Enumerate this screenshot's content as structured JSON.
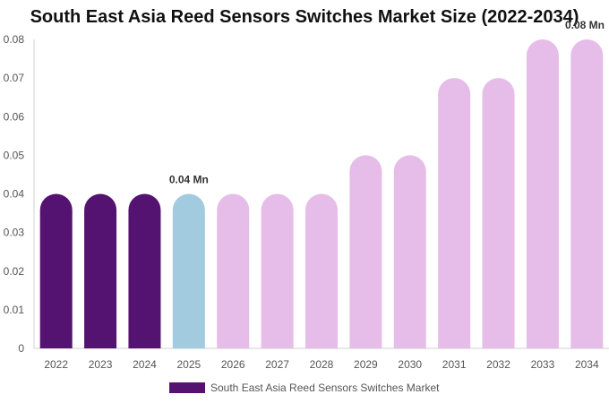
{
  "chart_data": {
    "type": "bar",
    "title": "South East Asia Reed Sensors Switches Market Size (2022-2034)",
    "xlabel": "",
    "ylabel": "",
    "categories": [
      "2022",
      "2023",
      "2024",
      "2025",
      "2026",
      "2027",
      "2028",
      "2029",
      "2030",
      "2031",
      "2032",
      "2033",
      "2034"
    ],
    "series": [
      {
        "name": "South East Asia Reed Sensors Switches Market",
        "values": [
          0.04,
          0.04,
          0.04,
          0.04,
          0.04,
          0.04,
          0.04,
          0.05,
          0.05,
          0.07,
          0.07,
          0.08,
          0.08
        ]
      }
    ],
    "ylim": [
      0,
      0.08
    ],
    "yticks": [
      "0",
      "0.01",
      "0.02",
      "0.03",
      "0.04",
      "0.05",
      "0.06",
      "0.07",
      "0.08"
    ],
    "bar_colors": [
      "#541271",
      "#541271",
      "#541271",
      "#a3cbe0",
      "#e6bce8",
      "#e6bce8",
      "#e6bce8",
      "#e6bce8",
      "#e6bce8",
      "#e6bce8",
      "#e6bce8",
      "#e6bce8",
      "#e6bce8"
    ],
    "data_labels": [
      {
        "category": "2025",
        "text": "0.04 Mn"
      },
      {
        "category": "2034",
        "text": "0.08 Mn"
      }
    ],
    "legend": {
      "position": "bottom",
      "color": "#541271"
    },
    "grid": false
  }
}
